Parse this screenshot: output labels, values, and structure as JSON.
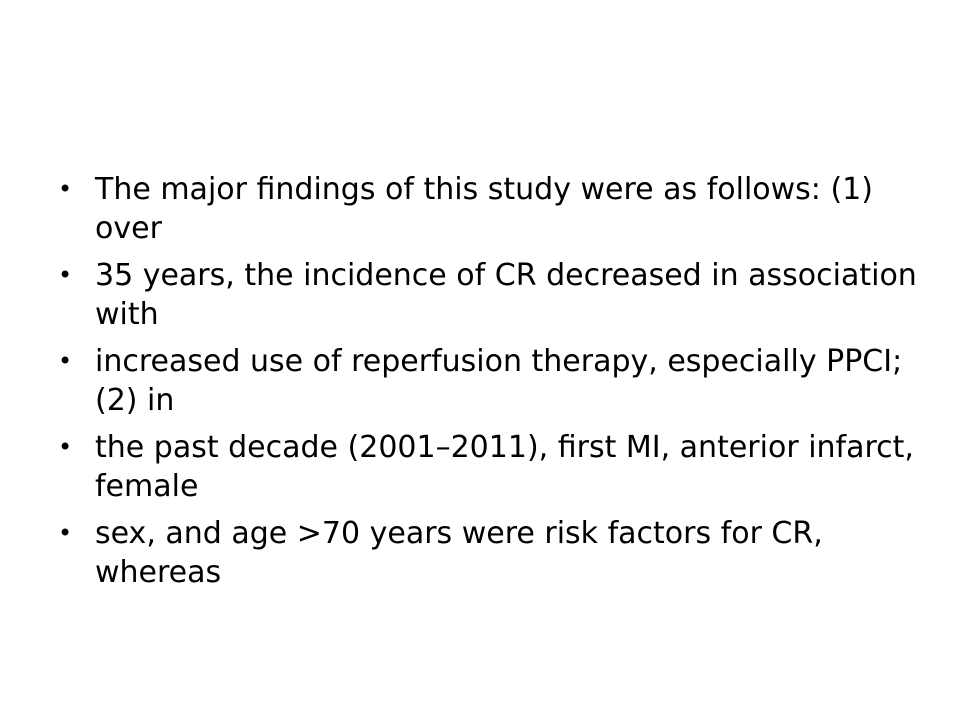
{
  "slide": {
    "bullets": [
      {
        "icon": "bullet-dot-icon",
        "symbol": "•",
        "text": "The major findings of this study were as follows: (1) over"
      },
      {
        "icon": "bullet-dot-icon",
        "symbol": "•",
        "text": "35 years, the incidence of CR decreased in association with"
      },
      {
        "icon": "bullet-dot-icon",
        "symbol": "•",
        "text": "increased use of reperfusion therapy, especially PPCI; (2) in"
      },
      {
        "icon": "bullet-dot-icon",
        "symbol": "•",
        "text": "the past decade (2001–2011), first MI, anterior infarct, female"
      },
      {
        "icon": "bullet-dot-icon",
        "symbol": "•",
        "text": "sex, and age >70 years were risk factors for CR, whereas"
      }
    ]
  }
}
